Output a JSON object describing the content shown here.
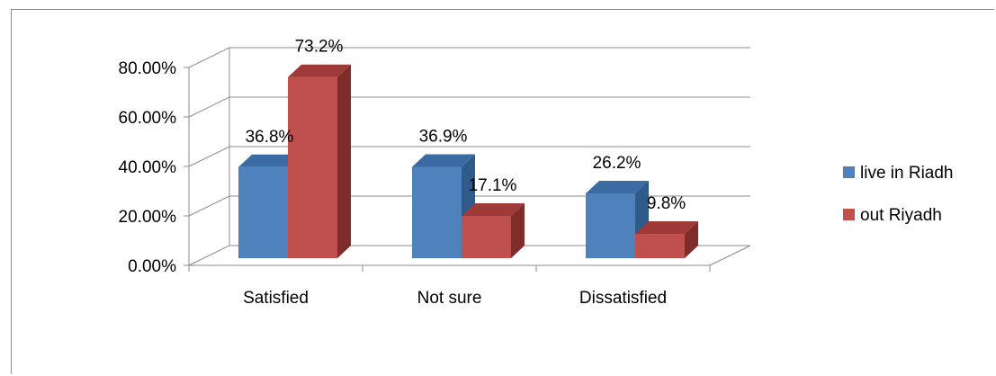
{
  "chart_data": {
    "type": "bar",
    "categories": [
      "Satisfied",
      "Not sure",
      "Dissatisfied"
    ],
    "series": [
      {
        "name": "live in Riadh",
        "values": [
          36.8,
          36.9,
          26.2
        ],
        "labels": [
          "36.8%",
          "36.9%",
          "26.2%"
        ],
        "color": "#4F81BD",
        "side_color": "#2F5B8A",
        "top_color": "#3A6BA3"
      },
      {
        "name": "out Riyadh",
        "values": [
          73.2,
          17.1,
          9.8
        ],
        "labels": [
          "73.2%",
          "17.1%",
          "9.8%"
        ],
        "color": "#C0504D",
        "side_color": "#7F2C2A",
        "top_color": "#9E3A37"
      }
    ],
    "yticks": [
      "0.00%",
      "20.00%",
      "40.00%",
      "60.00%",
      "80.00%"
    ],
    "ylim": [
      0,
      80
    ],
    "grid": true,
    "legend_position": "right",
    "projection": "3d-clustered-column"
  }
}
